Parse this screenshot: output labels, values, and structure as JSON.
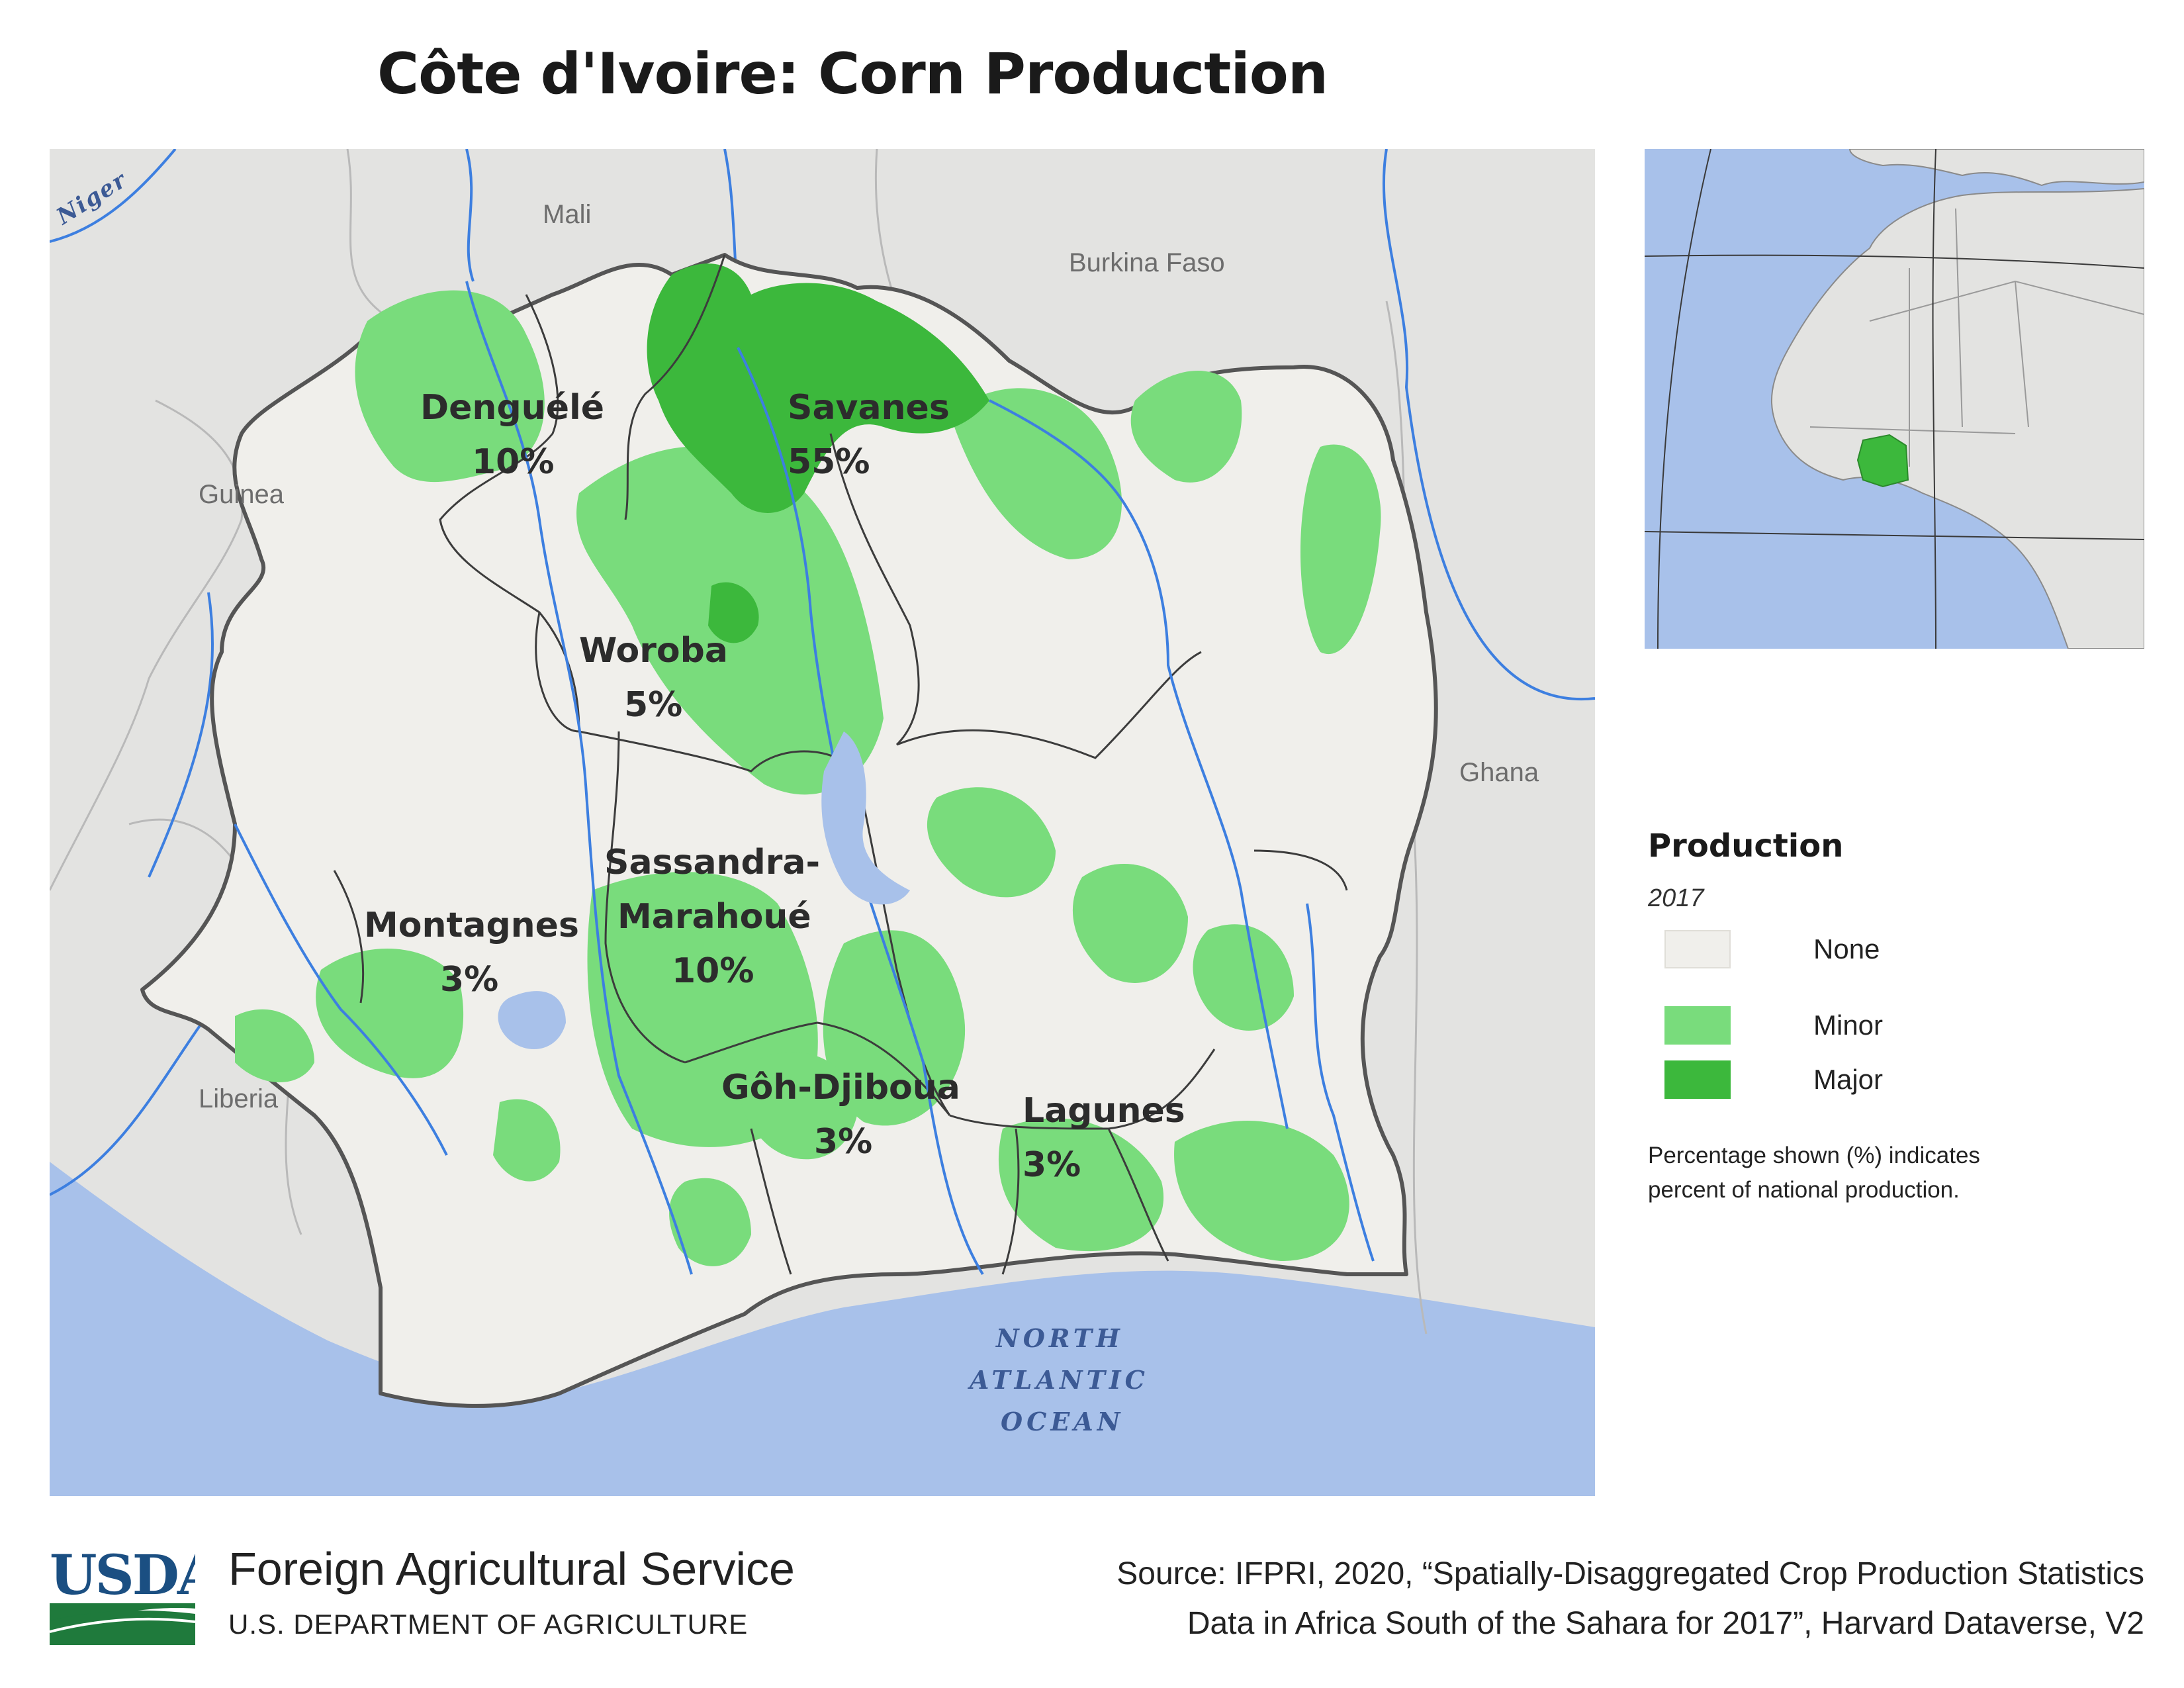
{
  "title": "Côte d'Ivoire: Corn Production",
  "colors": {
    "water": "#a8c1ea",
    "land_other": "#e3e3e1",
    "none": "#f0efeb",
    "minor": "#79dc7c",
    "major": "#3cb83c",
    "river": "#3d7fe0",
    "boundary": "#555555"
  },
  "map": {
    "countries": [
      "Mali",
      "Burkina Faso",
      "Guinea",
      "Ghana",
      "Liberia"
    ],
    "river_label": "Niger",
    "ocean_label": [
      "NORTH",
      "ATLANTIC",
      "OCEAN"
    ],
    "regions": [
      {
        "name": "Denguélé",
        "share": "10%",
        "production": "Minor"
      },
      {
        "name": "Savanes",
        "share": "55%",
        "production": "Major"
      },
      {
        "name": "Woroba",
        "share": "5%",
        "production": "Minor"
      },
      {
        "name": "Sassandra-",
        "name_line2": "Marahoué",
        "share": "10%",
        "production": "Minor"
      },
      {
        "name": "Montagnes",
        "share": "3%",
        "production": "Minor"
      },
      {
        "name": "Gôh-Djiboua",
        "share": "3%",
        "production": "Minor"
      },
      {
        "name": "Lagunes",
        "share": "3%",
        "production": "Minor"
      }
    ]
  },
  "legend": {
    "title": "Production",
    "year": "2017",
    "items": [
      {
        "label": "None",
        "color": "#f0efeb"
      },
      {
        "label": "Minor",
        "color": "#79dc7c"
      },
      {
        "label": "Major",
        "color": "#3cb83c"
      }
    ],
    "note_line1": "Percentage shown (%) indicates",
    "note_line2": "percent of national production."
  },
  "footer": {
    "logo_text": "USDA",
    "agency": "Foreign Agricultural Service",
    "department": "U.S. DEPARTMENT OF AGRICULTURE",
    "source_line1": "Source: IFPRI, 2020, “Spatially-Disaggregated Crop Production Statistics",
    "source_line2": "Data in Africa South of the Sahara for 2017”, Harvard Dataverse, V2"
  }
}
